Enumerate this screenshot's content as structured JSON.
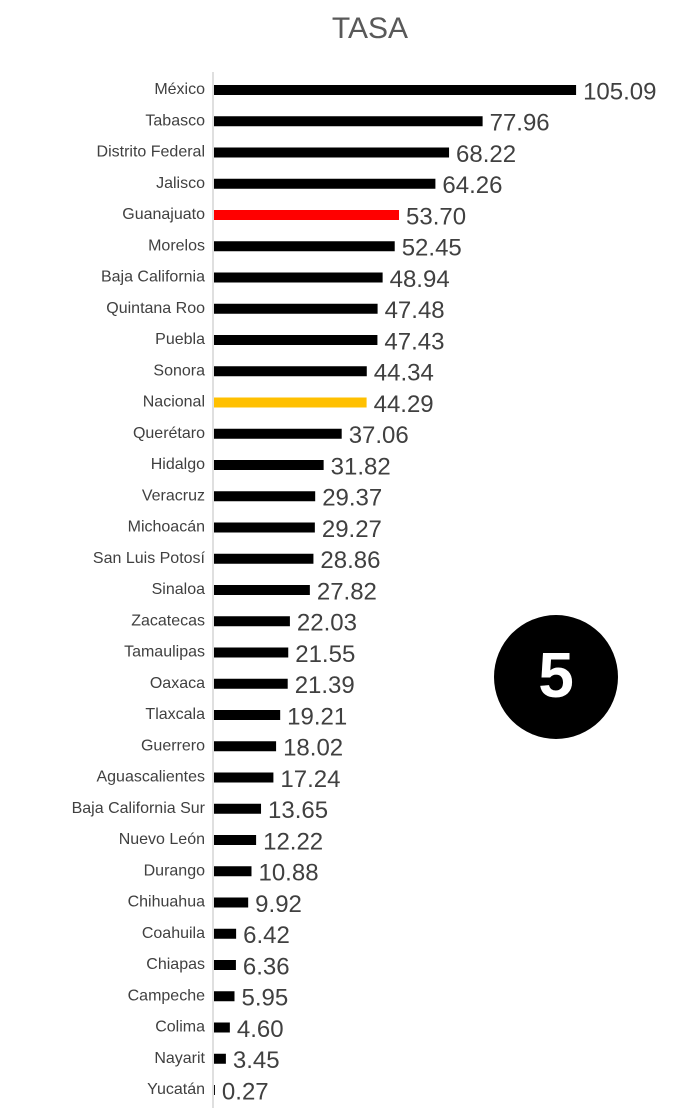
{
  "chart_data": {
    "type": "bar",
    "orientation": "horizontal",
    "title": "TASA",
    "categories": [
      "México",
      "Tabasco",
      "Distrito Federal",
      "Jalisco",
      "Guanajuato",
      "Morelos",
      "Baja California",
      "Quintana Roo",
      "Puebla",
      "Sonora",
      "Nacional",
      "Querétaro",
      "Hidalgo",
      "Veracruz",
      "Michoacán",
      "San Luis Potosí",
      "Sinaloa",
      "Zacatecas",
      "Tamaulipas",
      "Oaxaca",
      "Tlaxcala",
      "Guerrero",
      "Aguascalientes",
      "Baja California Sur",
      "Nuevo León",
      "Durango",
      "Chihuahua",
      "Coahuila",
      "Chiapas",
      "Campeche",
      "Colima",
      "Nayarit",
      "Yucatán"
    ],
    "values": [
      105.09,
      77.96,
      68.22,
      64.26,
      53.7,
      52.45,
      48.94,
      47.48,
      47.43,
      44.34,
      44.29,
      37.06,
      31.82,
      29.37,
      29.27,
      28.86,
      27.82,
      22.03,
      21.55,
      21.39,
      19.21,
      18.02,
      17.24,
      13.65,
      12.22,
      10.88,
      9.92,
      6.42,
      6.36,
      5.95,
      4.6,
      3.45,
      0.27
    ],
    "value_labels": [
      "105.09",
      "77.96",
      "68.22",
      "64.26",
      "53.70",
      "52.45",
      "48.94",
      "47.48",
      "47.43",
      "44.34",
      "44.29",
      "37.06",
      "31.82",
      "29.37",
      "29.27",
      "28.86",
      "27.82",
      "22.03",
      "21.55",
      "21.39",
      "19.21",
      "18.02",
      "17.24",
      "13.65",
      "12.22",
      "10.88",
      "9.92",
      "6.42",
      "6.36",
      "5.95",
      "4.60",
      "3.45",
      "0.27"
    ],
    "colors": [
      "#000000",
      "#000000",
      "#000000",
      "#000000",
      "#ff0000",
      "#000000",
      "#000000",
      "#000000",
      "#000000",
      "#000000",
      "#ffc000",
      "#000000",
      "#000000",
      "#000000",
      "#000000",
      "#000000",
      "#000000",
      "#000000",
      "#000000",
      "#000000",
      "#000000",
      "#000000",
      "#000000",
      "#000000",
      "#000000",
      "#000000",
      "#000000",
      "#000000",
      "#000000",
      "#000000",
      "#000000",
      "#000000",
      "#000000"
    ],
    "xlim": [
      0,
      110
    ],
    "badge": "5"
  }
}
